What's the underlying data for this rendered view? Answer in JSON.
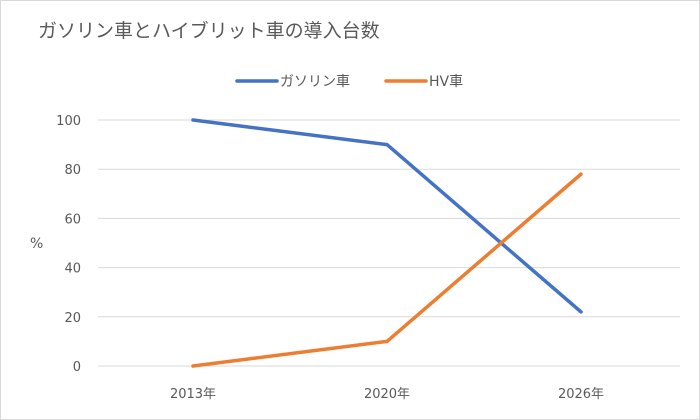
{
  "chart_data": {
    "type": "line",
    "title": "ガソリン車とハイブリット車の導入台数",
    "xlabel": "",
    "ylabel": "%",
    "categories": [
      "2013年",
      "2020年",
      "2026年"
    ],
    "ylim": [
      0,
      100
    ],
    "yticks": [
      "0",
      "20",
      "40",
      "60",
      "80",
      "100"
    ],
    "grid": true,
    "legend_position": "top",
    "series": [
      {
        "name": "ガソリン車",
        "values": [
          100,
          90,
          22
        ],
        "color": "#4472c4"
      },
      {
        "name": "HV車",
        "values": [
          0,
          10,
          78
        ],
        "color": "#ed7d31"
      }
    ]
  }
}
